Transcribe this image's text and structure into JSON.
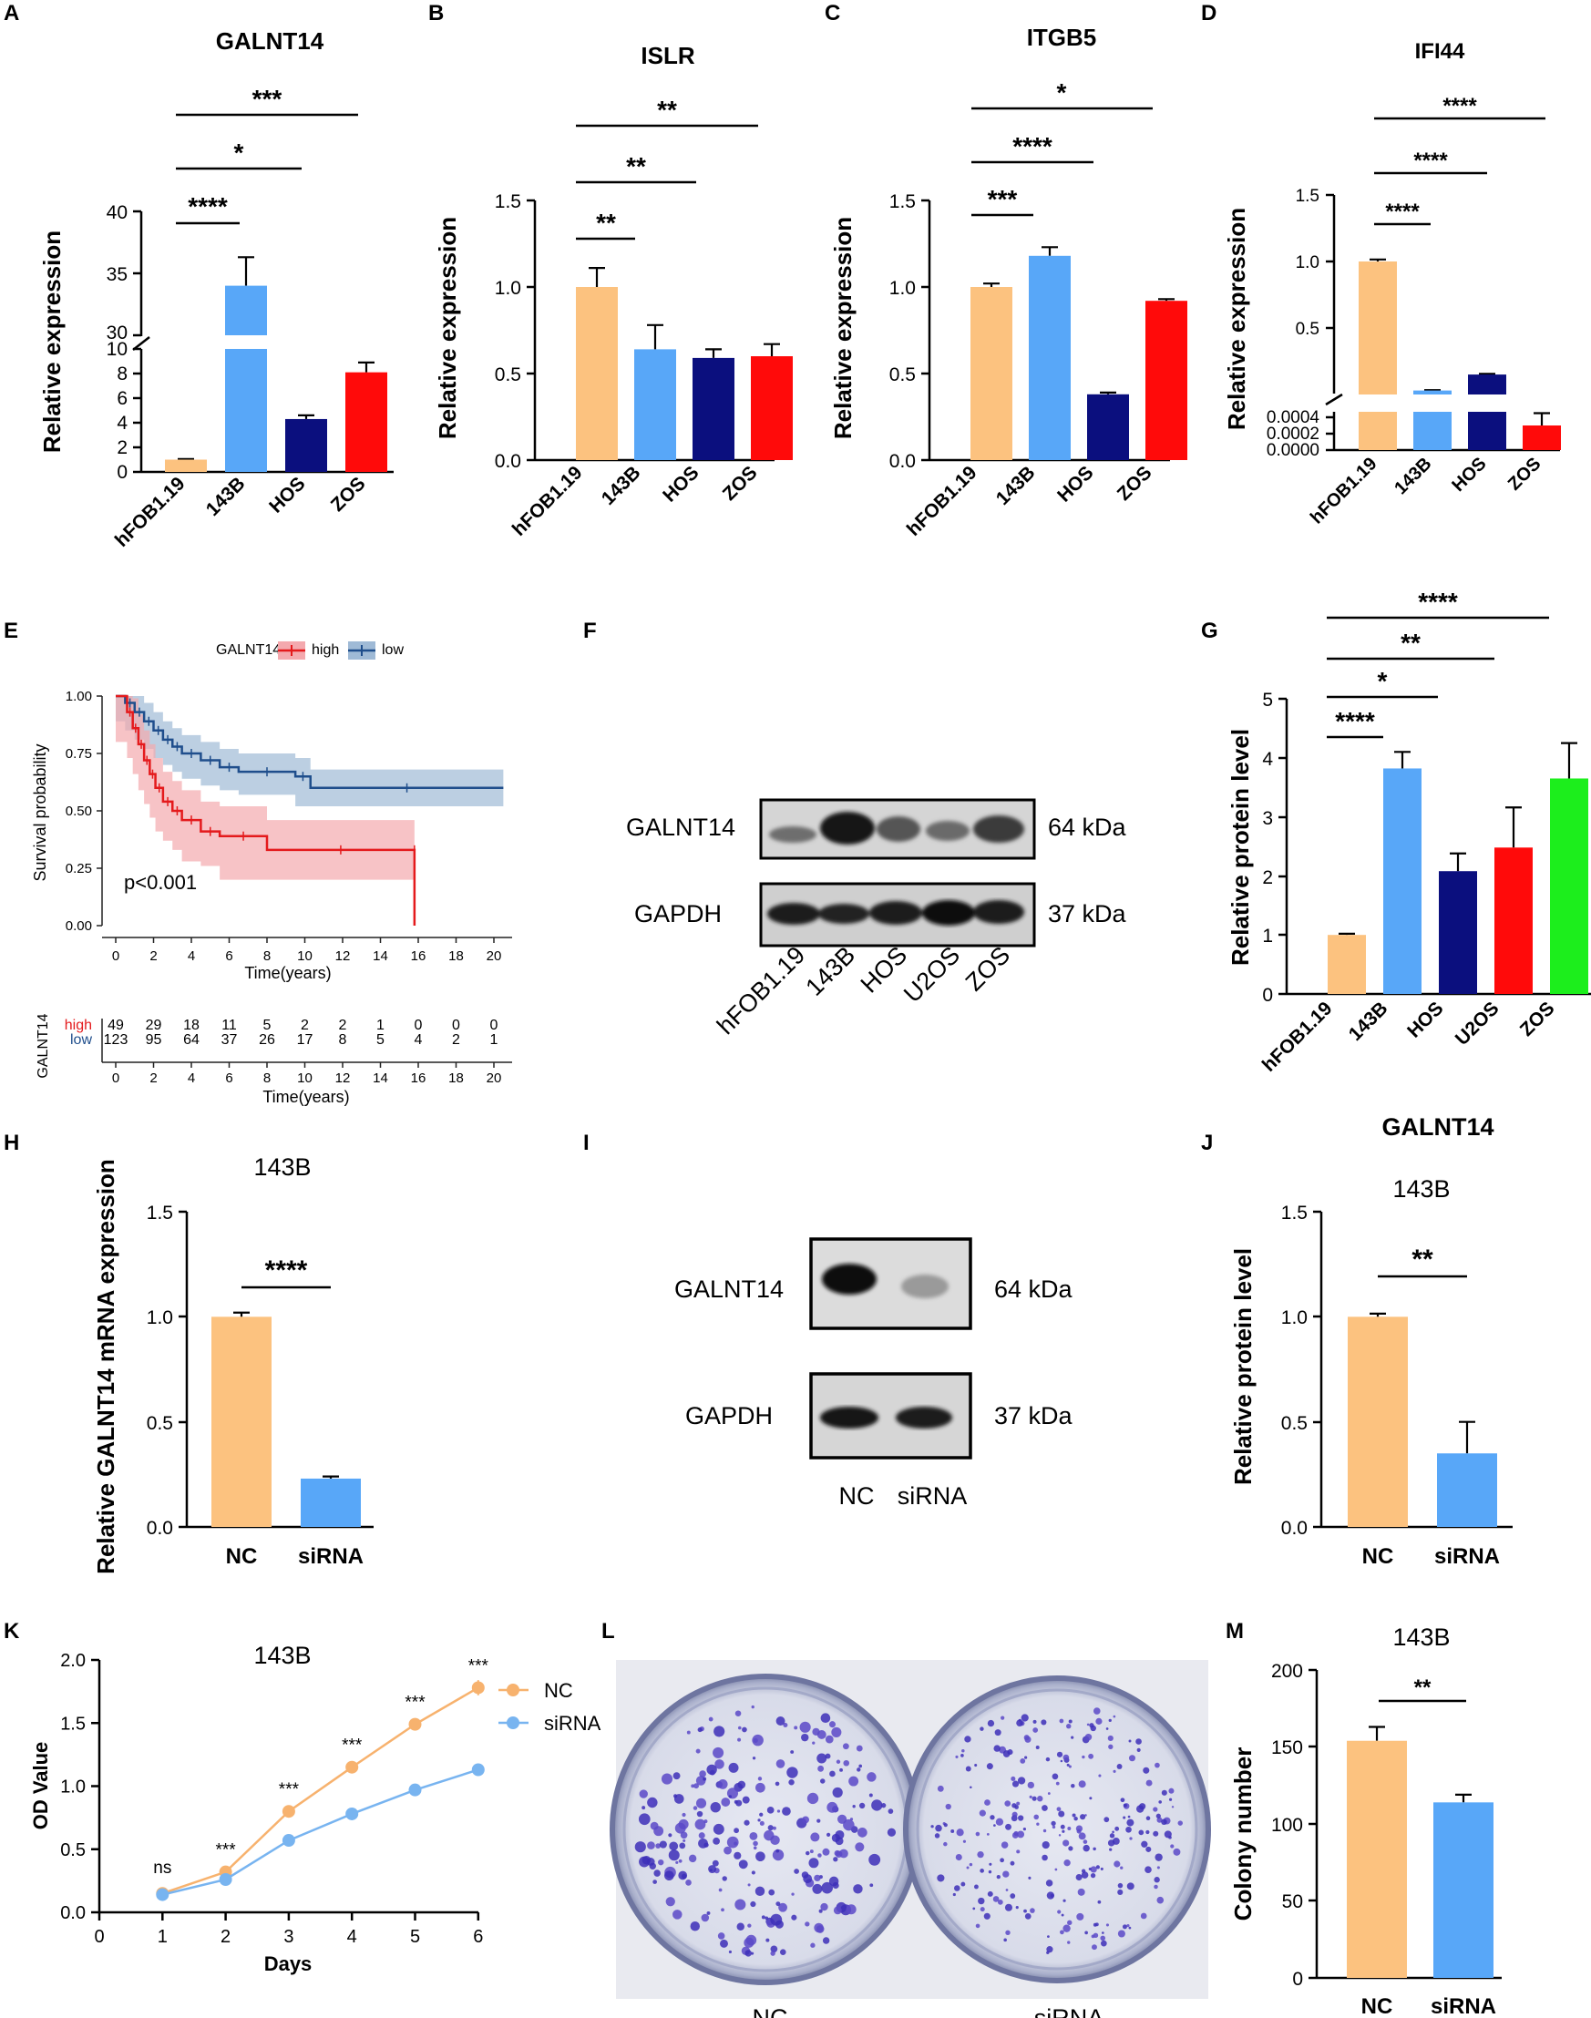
{
  "colors": {
    "orange": "#FCC27F",
    "blue": "#58A7F8",
    "navy": "#0B0F7E",
    "red": "#FF0A0A",
    "green": "#1CEE1C",
    "km_high": "#E41A1C",
    "km_low": "#1F4E8C",
    "km_high_band": "#F4A9AE",
    "km_low_band": "#9FBAD6",
    "line_nc": "#F7B26E",
    "line_si": "#78B4F0"
  },
  "chart_data": [
    {
      "panel": "A",
      "type": "bar",
      "title": "GALNT14",
      "ylabel": "Relative expression",
      "categories": [
        "hFOB1.19",
        "143B",
        "HOS",
        "ZOS"
      ],
      "values": [
        1.0,
        34.0,
        4.3,
        8.1
      ],
      "errors": [
        0.05,
        2.3,
        0.3,
        0.8
      ],
      "colors": [
        "orange",
        "blue",
        "navy",
        "red"
      ],
      "y_break": {
        "lower": [
          0,
          10
        ],
        "upper": [
          30,
          40
        ]
      },
      "yticks_lower": [
        "0",
        "2",
        "4",
        "6",
        "8",
        "10"
      ],
      "yticks_upper": [
        "30",
        "35",
        "40"
      ],
      "significance": [
        {
          "from": 0,
          "to": 1,
          "label": "****"
        },
        {
          "from": 0,
          "to": 2,
          "label": "*"
        },
        {
          "from": 0,
          "to": 3,
          "label": "***"
        }
      ]
    },
    {
      "panel": "B",
      "type": "bar",
      "title": "ISLR",
      "ylabel": "Relative expression",
      "categories": [
        "hFOB1.19",
        "143B",
        "HOS",
        "ZOS"
      ],
      "values": [
        1.0,
        0.64,
        0.59,
        0.6
      ],
      "errors": [
        0.11,
        0.14,
        0.05,
        0.07
      ],
      "colors": [
        "orange",
        "blue",
        "navy",
        "red"
      ],
      "ylim": [
        0,
        1.5
      ],
      "yticks": [
        "0.0",
        "0.5",
        "1.0",
        "1.5"
      ],
      "significance": [
        {
          "from": 0,
          "to": 1,
          "label": "**"
        },
        {
          "from": 0,
          "to": 2,
          "label": "**"
        },
        {
          "from": 0,
          "to": 3,
          "label": "**"
        }
      ]
    },
    {
      "panel": "C",
      "type": "bar",
      "title": "ITGB5",
      "ylabel": "Relative expression",
      "categories": [
        "hFOB1.19",
        "143B",
        "HOS",
        "ZOS"
      ],
      "values": [
        1.0,
        1.18,
        0.38,
        0.92
      ],
      "errors": [
        0.02,
        0.05,
        0.01,
        0.01
      ],
      "colors": [
        "orange",
        "blue",
        "navy",
        "red"
      ],
      "ylim": [
        0,
        1.5
      ],
      "yticks": [
        "0.0",
        "0.5",
        "1.0",
        "1.5"
      ],
      "significance": [
        {
          "from": 0,
          "to": 1,
          "label": "***"
        },
        {
          "from": 0,
          "to": 2,
          "label": "****"
        },
        {
          "from": 0,
          "to": 3,
          "label": "*"
        }
      ]
    },
    {
      "panel": "D",
      "type": "bar",
      "title": "IFI44",
      "ylabel": "Relative expression",
      "categories": [
        "hFOB1.19",
        "143B",
        "HOS",
        "ZOS"
      ],
      "values": [
        1.0,
        0.03,
        0.15,
        0.0003
      ],
      "errors": [
        0.015,
        0.003,
        0.005,
        0.00015
      ],
      "colors": [
        "orange",
        "blue",
        "navy",
        "red"
      ],
      "y_break": {
        "lower": [
          0,
          0.0005
        ],
        "upper": [
          0,
          1.5
        ]
      },
      "yticks_lower": [
        "0.0000",
        "0.0002",
        "0.0004"
      ],
      "yticks_upper": [
        "0.5",
        "1.0",
        "1.5"
      ],
      "significance": [
        {
          "from": 0,
          "to": 1,
          "label": "****"
        },
        {
          "from": 0,
          "to": 2,
          "label": "****"
        },
        {
          "from": 0,
          "to": 3,
          "label": "****"
        }
      ]
    },
    {
      "panel": "E",
      "type": "line",
      "subtype": "kaplan-meier",
      "legend_title": "GALNT14",
      "legend_labels": [
        "high",
        "low"
      ],
      "ylabel": "Survival probability",
      "xlabel": "Time(years)",
      "xlim": [
        0,
        21
      ],
      "ylim": [
        0,
        1
      ],
      "xticks": [
        "0",
        "2",
        "4",
        "6",
        "8",
        "10",
        "12",
        "14",
        "16",
        "18",
        "20"
      ],
      "yticks": [
        "0.00",
        "0.25",
        "0.50",
        "0.75",
        "1.00"
      ],
      "annotation": "p<0.001",
      "series": [
        {
          "name": "high",
          "color": "km_high",
          "x": [
            0,
            0.6,
            0.9,
            1.2,
            1.5,
            1.8,
            2.1,
            2.5,
            3.0,
            3.5,
            4.5,
            5.5,
            8.0,
            15.8,
            15.8
          ],
          "y": [
            1.0,
            0.93,
            0.86,
            0.79,
            0.72,
            0.66,
            0.6,
            0.54,
            0.5,
            0.46,
            0.41,
            0.39,
            0.33,
            0.33,
            0.0
          ]
        },
        {
          "name": "low",
          "color": "km_low",
          "x": [
            0,
            0.5,
            1.0,
            1.5,
            2.0,
            2.5,
            3.0,
            3.5,
            4.5,
            5.5,
            6.5,
            9.5,
            10.3,
            20.5
          ],
          "y": [
            1.0,
            0.97,
            0.93,
            0.89,
            0.85,
            0.81,
            0.78,
            0.75,
            0.72,
            0.69,
            0.67,
            0.65,
            0.6,
            0.6
          ]
        }
      ],
      "risk_table": {
        "ylabel": "GALNT14",
        "xlabel": "Time(years)",
        "xticks": [
          "0",
          "2",
          "4",
          "6",
          "8",
          "10",
          "12",
          "14",
          "16",
          "18",
          "20"
        ],
        "rows": [
          {
            "label": "high",
            "color": "km_high",
            "values": [
              "49",
              "29",
              "18",
              "11",
              "5",
              "2",
              "2",
              "1",
              "0",
              "0",
              "0"
            ]
          },
          {
            "label": "low",
            "color": "km_low",
            "values": [
              "123",
              "95",
              "64",
              "37",
              "26",
              "17",
              "8",
              "5",
              "4",
              "2",
              "1"
            ]
          }
        ]
      }
    },
    {
      "panel": "G",
      "type": "bar",
      "ylabel": "Relative protein level",
      "categories": [
        "hFOB1.19",
        "143B",
        "HOS",
        "U2OS",
        "ZOS"
      ],
      "values": [
        1.0,
        3.82,
        2.08,
        2.48,
        3.65
      ],
      "errors": [
        0.02,
        0.28,
        0.3,
        0.68,
        0.6
      ],
      "colors": [
        "orange",
        "blue",
        "navy",
        "red",
        "green"
      ],
      "ylim": [
        0,
        5
      ],
      "yticks": [
        "0",
        "1",
        "2",
        "3",
        "4",
        "5"
      ],
      "significance": [
        {
          "from": 0,
          "to": 1,
          "label": "****"
        },
        {
          "from": 0,
          "to": 2,
          "label": "*"
        },
        {
          "from": 0,
          "to": 3,
          "label": "**"
        },
        {
          "from": 0,
          "to": 4,
          "label": "****"
        }
      ]
    },
    {
      "panel": "H",
      "type": "bar",
      "title": "143B",
      "ylabel": "Relative GALNT14 mRNA expression",
      "categories": [
        "NC",
        "siRNA"
      ],
      "values": [
        1.0,
        0.23
      ],
      "errors": [
        0.02,
        0.01
      ],
      "colors": [
        "orange",
        "blue"
      ],
      "ylim": [
        0,
        1.5
      ],
      "yticks": [
        "0.0",
        "0.5",
        "1.0",
        "1.5"
      ],
      "significance": [
        {
          "from": 0,
          "to": 1,
          "label": "****"
        }
      ]
    },
    {
      "panel": "J",
      "type": "bar",
      "title": "GALNT14",
      "subtitle": "143B",
      "ylabel": "Relative protein level",
      "categories": [
        "NC",
        "siRNA"
      ],
      "values": [
        1.0,
        0.35
      ],
      "errors": [
        0.015,
        0.15
      ],
      "colors": [
        "orange",
        "blue"
      ],
      "ylim": [
        0,
        1.5
      ],
      "yticks": [
        "0.0",
        "0.5",
        "1.0",
        "1.5"
      ],
      "significance": [
        {
          "from": 0,
          "to": 1,
          "label": "**"
        }
      ]
    },
    {
      "panel": "K",
      "type": "line",
      "title": "143B",
      "xlabel": "Days",
      "ylabel": "OD Value",
      "x": [
        1,
        2,
        3,
        4,
        5,
        6
      ],
      "xlim": [
        0,
        6
      ],
      "ylim": [
        0,
        2
      ],
      "xticks": [
        "0",
        "1",
        "2",
        "3",
        "4",
        "5",
        "6"
      ],
      "yticks": [
        "0.0",
        "0.5",
        "1.0",
        "1.5",
        "2.0"
      ],
      "series": [
        {
          "name": "NC",
          "color": "line_nc",
          "values": [
            0.15,
            0.32,
            0.8,
            1.15,
            1.49,
            1.78
          ]
        },
        {
          "name": "siRNA",
          "color": "line_si",
          "values": [
            0.14,
            0.26,
            0.57,
            0.78,
            0.97,
            1.13
          ]
        }
      ],
      "annotations": [
        "ns",
        "***",
        "***",
        "***",
        "***",
        "***"
      ]
    },
    {
      "panel": "M",
      "type": "bar",
      "title": "143B",
      "ylabel": "Colony number",
      "categories": [
        "NC",
        "siRNA"
      ],
      "values": [
        154,
        114
      ],
      "errors": [
        9,
        5
      ],
      "colors": [
        "orange",
        "blue"
      ],
      "ylim": [
        0,
        200
      ],
      "yticks": [
        "0",
        "50",
        "100",
        "150",
        "200"
      ],
      "significance": [
        {
          "from": 0,
          "to": 1,
          "label": "**"
        }
      ]
    }
  ],
  "panels": {
    "labels": [
      "A",
      "B",
      "C",
      "D",
      "E",
      "F",
      "G",
      "H",
      "I",
      "J",
      "K",
      "L",
      "M"
    ],
    "F": {
      "rows": [
        {
          "protein": "GALNT14",
          "size": "64 kDa"
        },
        {
          "protein": "GAPDH",
          "size": "37 kDa"
        }
      ],
      "lanes": [
        "hFOB1.19",
        "143B",
        "HOS",
        "U2OS",
        "ZOS"
      ]
    },
    "I": {
      "rows": [
        {
          "protein": "GALNT14",
          "size": "64 kDa"
        },
        {
          "protein": "GAPDH",
          "size": "37 kDa"
        }
      ],
      "lanes": [
        "NC",
        "siRNA"
      ]
    },
    "L": {
      "lanes": [
        "NC",
        "siRNA"
      ]
    }
  }
}
